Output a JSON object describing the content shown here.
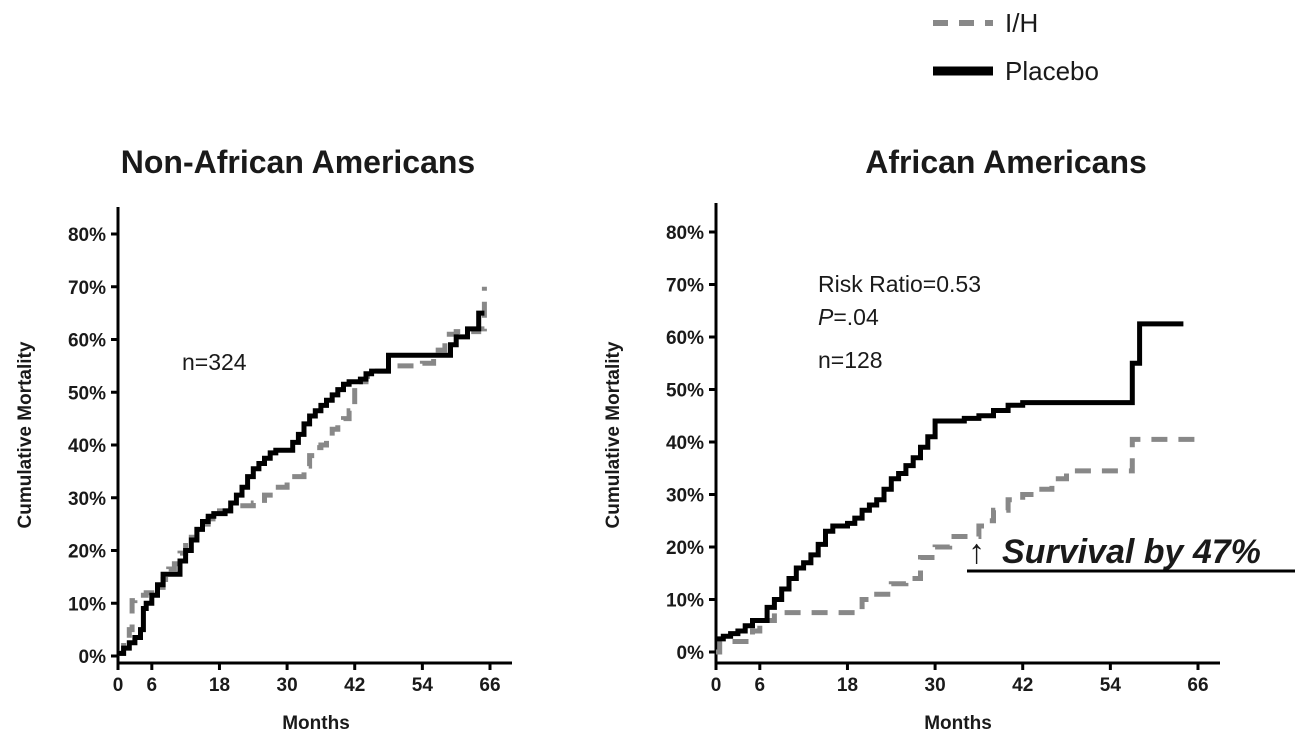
{
  "legend": {
    "position": "top-right",
    "entries": [
      {
        "label": "I/H",
        "style": "dashed",
        "color": "#888888"
      },
      {
        "label": "Placebo",
        "style": "solid",
        "color": "#000000"
      }
    ]
  },
  "callout": {
    "arrow": "↑",
    "text": "Survival by 47%"
  },
  "chart_data": [
    {
      "type": "line",
      "title": "Non-African Americans",
      "xlabel": "Months",
      "ylabel": "Cumulative Mortality",
      "xlim": [
        0,
        68
      ],
      "ylim": [
        0,
        85
      ],
      "x_ticks": [
        0,
        6,
        18,
        30,
        42,
        54,
        66
      ],
      "y_ticks": [
        0,
        10,
        20,
        30,
        40,
        50,
        60,
        70,
        80
      ],
      "y_tick_labels": [
        "0%",
        "10%",
        "20%",
        "30%",
        "40%",
        "50%",
        "60%",
        "70%",
        "80%"
      ],
      "grid": false,
      "annotations": [
        "n=324"
      ],
      "series": [
        {
          "name": "I/H",
          "style": "dashed",
          "color": "#888888",
          "x": [
            0,
            1,
            2,
            2.5,
            3,
            4,
            5,
            6,
            7,
            8,
            9,
            10,
            11,
            12,
            13,
            14,
            15,
            16,
            18,
            20,
            22,
            24,
            26,
            28,
            30,
            32,
            33,
            34,
            35,
            36,
            37,
            38,
            39,
            40,
            41,
            42,
            44,
            46,
            48,
            50,
            52,
            54,
            56,
            58,
            60,
            62,
            64,
            65
          ],
          "y": [
            0.5,
            3,
            5,
            10.5,
            11,
            11.5,
            12,
            12.5,
            13,
            14.5,
            16.5,
            17.5,
            19.5,
            21.5,
            22.5,
            24,
            25,
            26,
            27.5,
            28.5,
            28.5,
            29,
            30.5,
            32,
            34,
            34,
            36,
            38,
            39.5,
            40,
            41,
            43,
            44,
            45,
            46.5,
            52,
            53,
            54,
            55,
            55,
            55,
            55.5,
            58,
            61,
            61.5,
            61.5,
            62,
            70
          ]
        },
        {
          "name": "Placebo",
          "style": "solid",
          "color": "#000000",
          "x": [
            0,
            1,
            2,
            3,
            4,
            4.5,
            5,
            6,
            7,
            8,
            9,
            10,
            11,
            12,
            13,
            14,
            15,
            16,
            17,
            18,
            19,
            20,
            21,
            22,
            23,
            24,
            25,
            26,
            27,
            28,
            29,
            30,
            31,
            32,
            33,
            34,
            35,
            36,
            37,
            38,
            39,
            40,
            41,
            42,
            43,
            44,
            45,
            46,
            48,
            50,
            52,
            54,
            56,
            58,
            59,
            60,
            61,
            62,
            64,
            65
          ],
          "y": [
            0.5,
            1.5,
            2.5,
            3.5,
            5,
            9,
            10,
            11.5,
            13.5,
            15.5,
            15.5,
            15.5,
            18,
            20,
            22,
            24,
            25.5,
            26.5,
            27,
            27,
            27.5,
            29,
            30.5,
            32,
            34,
            35.5,
            36.5,
            37.5,
            38.5,
            39,
            39,
            39,
            40.5,
            42,
            44,
            45.5,
            46.5,
            47.5,
            48.5,
            49.5,
            50.5,
            51.5,
            52,
            52,
            52.5,
            53.5,
            54,
            54,
            57,
            57,
            57,
            57,
            57,
            57,
            59,
            60.5,
            60.5,
            62,
            65,
            65
          ]
        }
      ]
    },
    {
      "type": "line",
      "title": "African Americans",
      "xlabel": "Months",
      "ylabel": "Cumulative Mortality",
      "xlim": [
        0,
        68
      ],
      "ylim": [
        0,
        85
      ],
      "x_ticks": [
        0,
        6,
        18,
        30,
        42,
        54,
        66
      ],
      "y_ticks": [
        0,
        10,
        20,
        30,
        40,
        50,
        60,
        70,
        80
      ],
      "y_tick_labels": [
        "0%",
        "10%",
        "20%",
        "30%",
        "40%",
        "50%",
        "60%",
        "70%",
        "80%"
      ],
      "grid": false,
      "annotations": [
        "Risk Ratio=0.53",
        "n=128"
      ],
      "p_label": "P",
      "p_value": "=.04",
      "series": [
        {
          "name": "I/H",
          "style": "dashed",
          "color": "#888888",
          "x": [
            0,
            0.5,
            1,
            2,
            3,
            4,
            5,
            6,
            7,
            8,
            10,
            12,
            14,
            16,
            18,
            20,
            22,
            24,
            26,
            28,
            30,
            32,
            34,
            36,
            37,
            38,
            40,
            42,
            44,
            46,
            48,
            50,
            52,
            54,
            56,
            57,
            58,
            60,
            62,
            64,
            66
          ],
          "y": [
            0,
            2,
            2,
            2,
            2,
            2,
            4,
            6,
            6,
            7.5,
            7.5,
            7.5,
            7.5,
            7.5,
            7.5,
            10,
            11,
            13,
            14,
            18,
            20,
            22,
            22,
            24,
            25,
            27,
            29,
            30,
            31,
            33,
            34.5,
            34.5,
            34.5,
            34.5,
            34.5,
            40.5,
            40.5,
            40.5,
            40.5,
            40.5,
            40.5
          ]
        },
        {
          "name": "Placebo",
          "style": "solid",
          "color": "#000000",
          "x": [
            0,
            1,
            2,
            3,
            4,
            5,
            6,
            7,
            8,
            9,
            10,
            11,
            12,
            13,
            14,
            15,
            16,
            17,
            18,
            19,
            20,
            21,
            22,
            23,
            24,
            25,
            26,
            27,
            28,
            29,
            30,
            32,
            34,
            36,
            38,
            40,
            42,
            44,
            46,
            48,
            50,
            52,
            54,
            56,
            57,
            58,
            59,
            60,
            62,
            64
          ],
          "y": [
            2.5,
            3,
            3.5,
            4,
            5,
            6,
            6,
            8.5,
            10,
            12,
            14,
            16,
            17,
            18.5,
            20.5,
            23,
            24,
            24,
            24.5,
            25.5,
            27,
            28,
            29,
            31,
            33,
            34,
            35.5,
            37,
            39,
            41,
            44,
            44,
            44.5,
            45,
            46,
            47,
            47.5,
            47.5,
            47.5,
            47.5,
            47.5,
            47.5,
            47.5,
            47.5,
            55,
            62.5,
            62.5,
            62.5,
            62.5,
            62.5
          ]
        }
      ]
    }
  ]
}
